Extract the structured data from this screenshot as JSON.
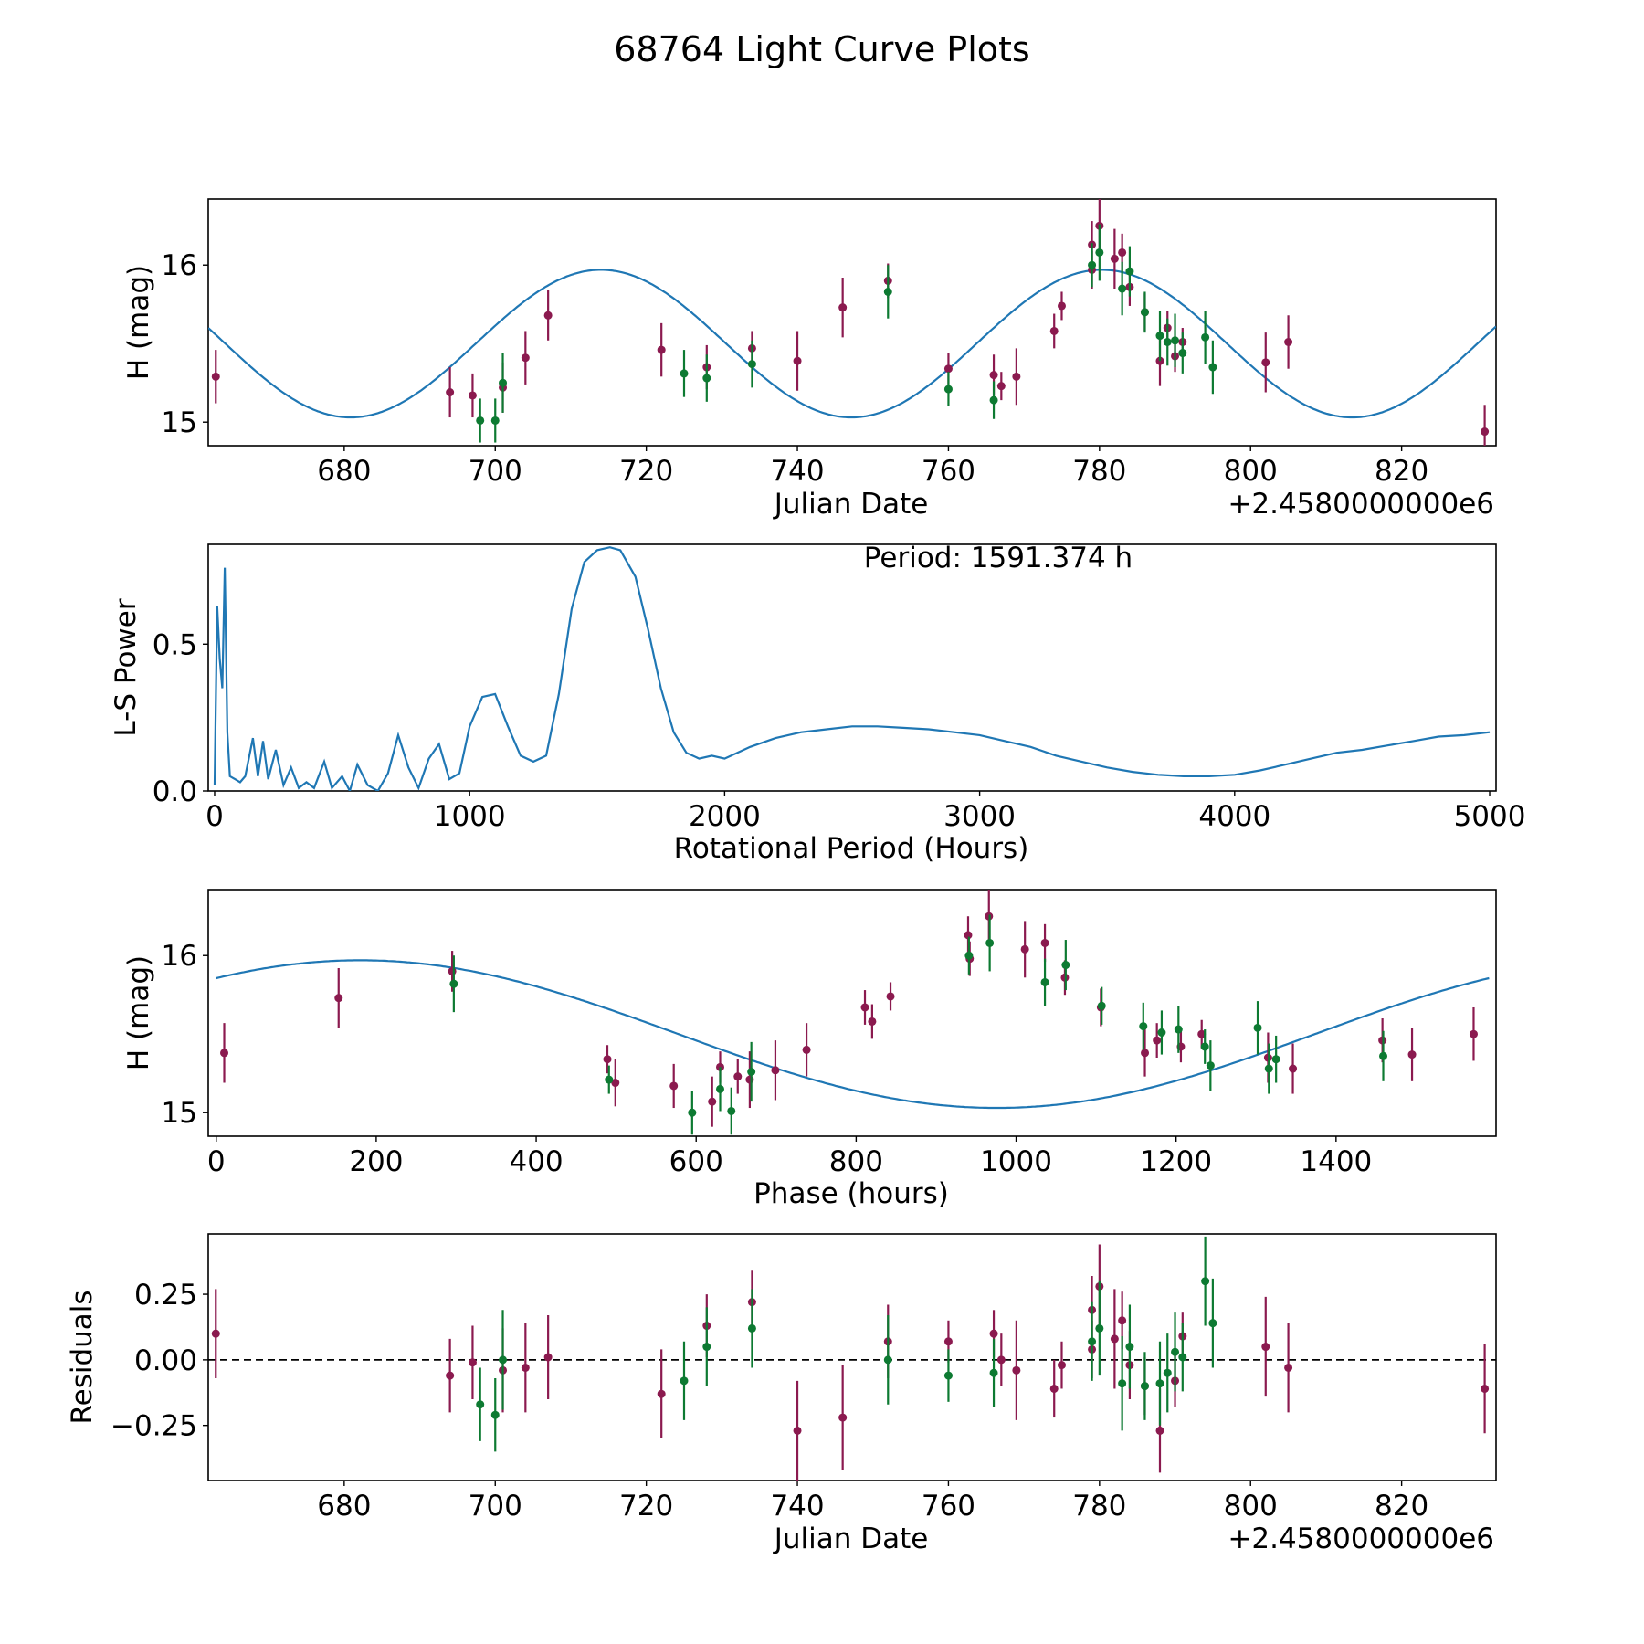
{
  "chart_data": [
    {
      "type": "scatter",
      "panel": "light-curve",
      "title": "68764 Light Curve Plots",
      "xlabel": "Julian Date",
      "ylabel": "H (mag)",
      "x_offset_label": "+2.4580000000e6",
      "xlim": [
        662,
        832.5
      ],
      "ylim": [
        14.85,
        16.42
      ],
      "xticks": [
        680,
        700,
        720,
        740,
        760,
        780,
        800,
        820
      ],
      "yticks": [
        15,
        16
      ],
      "fit": {
        "type": "sine",
        "amplitude": 0.47,
        "mean": 15.5,
        "period_days": 66.31,
        "peak_x": 780.3
      },
      "series": [
        {
          "name": "filter-1",
          "color": "#8b1a4f",
          "points": [
            [
              663,
              15.29,
              0.17
            ],
            [
              694,
              15.19,
              0.16
            ],
            [
              697,
              15.17,
              0.14
            ],
            [
              701,
              15.22,
              0.16
            ],
            [
              704,
              15.41,
              0.17
            ],
            [
              707,
              15.68,
              0.16
            ],
            [
              722,
              15.46,
              0.17
            ],
            [
              728,
              15.35,
              0.14
            ],
            [
              734,
              15.47,
              0.11
            ],
            [
              740,
              15.39,
              0.19
            ],
            [
              746,
              15.73,
              0.19
            ],
            [
              752,
              15.9,
              0.11
            ],
            [
              760,
              15.34,
              0.1
            ],
            [
              766,
              15.3,
              0.13
            ],
            [
              767,
              15.23,
              0.09
            ],
            [
              769,
              15.29,
              0.18
            ],
            [
              774,
              15.58,
              0.11
            ],
            [
              775,
              15.74,
              0.09
            ],
            [
              779,
              16.13,
              0.15
            ],
            [
              779,
              15.97,
              0.12
            ],
            [
              780,
              16.25,
              0.17
            ],
            [
              782,
              16.04,
              0.19
            ],
            [
              783,
              16.08,
              0.12
            ],
            [
              784,
              15.86,
              0.12
            ],
            [
              786,
              15.7,
              0.12
            ],
            [
              788,
              15.39,
              0.16
            ],
            [
              789,
              15.6,
              0.11
            ],
            [
              790,
              15.42,
              0.1
            ],
            [
              791,
              15.51,
              0.09
            ],
            [
              802,
              15.38,
              0.19
            ],
            [
              805,
              15.51,
              0.17
            ],
            [
              831,
              14.94,
              0.17
            ]
          ]
        },
        {
          "name": "filter-2",
          "color": "#0d7a32",
          "points": [
            [
              698,
              15.01,
              0.14
            ],
            [
              700,
              15.01,
              0.14
            ],
            [
              701,
              15.25,
              0.19
            ],
            [
              725,
              15.31,
              0.15
            ],
            [
              728,
              15.28,
              0.15
            ],
            [
              734,
              15.37,
              0.15
            ],
            [
              752,
              15.83,
              0.17
            ],
            [
              760,
              15.21,
              0.11
            ],
            [
              766,
              15.14,
              0.12
            ],
            [
              779,
              16.0,
              0.14
            ],
            [
              780,
              16.08,
              0.18
            ],
            [
              783,
              15.85,
              0.17
            ],
            [
              784,
              15.96,
              0.16
            ],
            [
              786,
              15.7,
              0.13
            ],
            [
              788,
              15.55,
              0.16
            ],
            [
              789,
              15.51,
              0.15
            ],
            [
              790,
              15.52,
              0.17
            ],
            [
              791,
              15.44,
              0.13
            ],
            [
              794,
              15.54,
              0.17
            ],
            [
              795,
              15.35,
              0.17
            ]
          ]
        }
      ]
    },
    {
      "type": "line",
      "panel": "periodogram",
      "xlabel": "Rotational Period (Hours)",
      "ylabel": "L-S Power",
      "annotation": "Period: 1591.374 h",
      "xlim": [
        -25,
        5025
      ],
      "ylim": [
        0,
        0.84
      ],
      "xticks": [
        0,
        1000,
        2000,
        3000,
        4000,
        5000
      ],
      "yticks": [
        0.0,
        0.5
      ],
      "ytick_labels": [
        "0.0",
        "0.5"
      ],
      "x": [
        0,
        10,
        20,
        30,
        40,
        50,
        60,
        80,
        100,
        120,
        150,
        170,
        190,
        210,
        240,
        270,
        300,
        330,
        360,
        390,
        430,
        460,
        500,
        530,
        560,
        600,
        640,
        680,
        720,
        760,
        800,
        840,
        880,
        920,
        960,
        1000,
        1050,
        1100,
        1150,
        1200,
        1250,
        1300,
        1350,
        1400,
        1450,
        1500,
        1550,
        1591,
        1650,
        1700,
        1750,
        1800,
        1850,
        1900,
        1950,
        2000,
        2100,
        2200,
        2300,
        2400,
        2500,
        2600,
        2700,
        2800,
        2900,
        3000,
        3100,
        3200,
        3300,
        3400,
        3500,
        3600,
        3700,
        3800,
        3900,
        4000,
        4100,
        4200,
        4300,
        4400,
        4500,
        4600,
        4700,
        4800,
        4900,
        5000
      ],
      "y": [
        0.02,
        0.63,
        0.45,
        0.35,
        0.76,
        0.2,
        0.05,
        0.04,
        0.03,
        0.05,
        0.18,
        0.05,
        0.17,
        0.04,
        0.14,
        0.02,
        0.08,
        0.01,
        0.03,
        0.01,
        0.1,
        0.01,
        0.05,
        0.0,
        0.09,
        0.02,
        0.0,
        0.06,
        0.19,
        0.08,
        0.01,
        0.11,
        0.16,
        0.04,
        0.06,
        0.22,
        0.32,
        0.33,
        0.22,
        0.12,
        0.1,
        0.12,
        0.33,
        0.62,
        0.78,
        0.82,
        0.83,
        0.82,
        0.73,
        0.55,
        0.35,
        0.2,
        0.13,
        0.11,
        0.12,
        0.11,
        0.15,
        0.18,
        0.2,
        0.21,
        0.22,
        0.22,
        0.215,
        0.21,
        0.2,
        0.19,
        0.17,
        0.15,
        0.12,
        0.1,
        0.08,
        0.065,
        0.055,
        0.05,
        0.05,
        0.055,
        0.07,
        0.09,
        0.11,
        0.13,
        0.14,
        0.155,
        0.17,
        0.185,
        0.19,
        0.2
      ]
    },
    {
      "type": "scatter",
      "panel": "phased",
      "xlabel": "Phase (hours)",
      "ylabel": "H (mag)",
      "xlim": [
        -10,
        1600
      ],
      "ylim": [
        14.85,
        16.42
      ],
      "xticks": [
        0,
        200,
        400,
        600,
        800,
        1000,
        1200,
        1400
      ],
      "yticks": [
        15,
        16
      ],
      "fit": {
        "type": "sine",
        "amplitude": 0.47,
        "mean": 15.5,
        "period_hours": 1591.374,
        "peak_x": 180
      },
      "series": [
        {
          "name": "filter-1",
          "color": "#8b1a4f",
          "points": [
            [
              10,
              15.38,
              0.19
            ],
            [
              153,
              15.73,
              0.19
            ],
            [
              295,
              15.9,
              0.13
            ],
            [
              489,
              15.34,
              0.09
            ],
            [
              499,
              15.19,
              0.15
            ],
            [
              572,
              15.17,
              0.14
            ],
            [
              620,
              15.07,
              0.16
            ],
            [
              630,
              15.29,
              0.1
            ],
            [
              652,
              15.23,
              0.11
            ],
            [
              667,
              15.21,
              0.18
            ],
            [
              699,
              15.27,
              0.19
            ],
            [
              738,
              15.4,
              0.17
            ],
            [
              811,
              15.67,
              0.11
            ],
            [
              820,
              15.58,
              0.11
            ],
            [
              843,
              15.74,
              0.09
            ],
            [
              940,
              16.13,
              0.12
            ],
            [
              942,
              15.98,
              0.11
            ],
            [
              966,
              16.25,
              0.17
            ],
            [
              1011,
              16.04,
              0.18
            ],
            [
              1036,
              16.08,
              0.12
            ],
            [
              1061,
              15.86,
              0.11
            ],
            [
              1106,
              15.67,
              0.12
            ],
            [
              1161,
              15.38,
              0.15
            ],
            [
              1176,
              15.46,
              0.11
            ],
            [
              1206,
              15.42,
              0.1
            ],
            [
              1232,
              15.5,
              0.09
            ],
            [
              1315,
              15.35,
              0.16
            ],
            [
              1346,
              15.28,
              0.16
            ],
            [
              1458,
              15.46,
              0.14
            ],
            [
              1495,
              15.37,
              0.17
            ],
            [
              1572,
              15.5,
              0.17
            ]
          ]
        },
        {
          "name": "filter-2",
          "color": "#0d7a32",
          "points": [
            [
              297,
              15.82,
              0.18
            ],
            [
              491,
              15.21,
              0.09
            ],
            [
              595,
              15.0,
              0.14
            ],
            [
              630,
              15.15,
              0.14
            ],
            [
              644,
              15.01,
              0.15
            ],
            [
              669,
              15.26,
              0.19
            ],
            [
              941,
              16.0,
              0.12
            ],
            [
              967,
              16.08,
              0.18
            ],
            [
              1036,
              15.83,
              0.15
            ],
            [
              1062,
              15.94,
              0.16
            ],
            [
              1107,
              15.68,
              0.12
            ],
            [
              1159,
              15.55,
              0.15
            ],
            [
              1182,
              15.51,
              0.14
            ],
            [
              1203,
              15.53,
              0.15
            ],
            [
              1236,
              15.42,
              0.11
            ],
            [
              1243,
              15.3,
              0.16
            ],
            [
              1302,
              15.54,
              0.17
            ],
            [
              1316,
              15.28,
              0.16
            ],
            [
              1325,
              15.34,
              0.15
            ],
            [
              1459,
              15.36,
              0.16
            ]
          ]
        }
      ]
    },
    {
      "type": "scatter",
      "panel": "residuals",
      "xlabel": "Julian Date",
      "ylabel": "Residuals",
      "x_offset_label": "+2.4580000000e6",
      "xlim": [
        662,
        832.5
      ],
      "ylim": [
        -0.46,
        0.48
      ],
      "xticks": [
        680,
        700,
        720,
        740,
        760,
        780,
        800,
        820
      ],
      "yticks": [
        -0.25,
        0.0,
        0.25
      ],
      "ytick_labels": [
        "−0.25",
        "0.00",
        "0.25"
      ],
      "reference_line": 0.0,
      "series": [
        {
          "name": "filter-1",
          "color": "#8b1a4f",
          "points": [
            [
              663,
              0.1,
              0.17
            ],
            [
              694,
              -0.06,
              0.14
            ],
            [
              697,
              -0.01,
              0.14
            ],
            [
              701,
              -0.04,
              0.16
            ],
            [
              704,
              -0.03,
              0.17
            ],
            [
              707,
              0.01,
              0.16
            ],
            [
              722,
              -0.13,
              0.17
            ],
            [
              728,
              0.13,
              0.12
            ],
            [
              734,
              0.22,
              0.12
            ],
            [
              740,
              -0.27,
              0.19
            ],
            [
              746,
              -0.22,
              0.2
            ],
            [
              752,
              0.07,
              0.14
            ],
            [
              760,
              0.07,
              0.08
            ],
            [
              766,
              0.1,
              0.09
            ],
            [
              767,
              0.0,
              0.1
            ],
            [
              769,
              -0.04,
              0.19
            ],
            [
              774,
              -0.11,
              0.11
            ],
            [
              775,
              -0.02,
              0.09
            ],
            [
              779,
              0.19,
              0.13
            ],
            [
              779,
              0.04,
              0.11
            ],
            [
              780,
              0.28,
              0.16
            ],
            [
              782,
              0.08,
              0.19
            ],
            [
              783,
              0.15,
              0.11
            ],
            [
              784,
              -0.02,
              0.13
            ],
            [
              786,
              -0.1,
              0.11
            ],
            [
              788,
              -0.27,
              0.16
            ],
            [
              790,
              -0.08,
              0.1
            ],
            [
              791,
              0.09,
              0.09
            ],
            [
              802,
              0.05,
              0.19
            ],
            [
              805,
              -0.03,
              0.17
            ],
            [
              831,
              -0.11,
              0.17
            ]
          ]
        },
        {
          "name": "filter-2",
          "color": "#0d7a32",
          "points": [
            [
              698,
              -0.17,
              0.14
            ],
            [
              700,
              -0.21,
              0.14
            ],
            [
              701,
              0.0,
              0.19
            ],
            [
              725,
              -0.08,
              0.15
            ],
            [
              728,
              0.05,
              0.15
            ],
            [
              734,
              0.12,
              0.15
            ],
            [
              752,
              0.0,
              0.17
            ],
            [
              760,
              -0.06,
              0.1
            ],
            [
              766,
              -0.05,
              0.13
            ],
            [
              779,
              0.07,
              0.15
            ],
            [
              780,
              0.12,
              0.18
            ],
            [
              783,
              -0.09,
              0.18
            ],
            [
              784,
              0.05,
              0.16
            ],
            [
              786,
              -0.1,
              0.13
            ],
            [
              788,
              -0.09,
              0.16
            ],
            [
              789,
              -0.05,
              0.15
            ],
            [
              790,
              0.03,
              0.15
            ],
            [
              791,
              0.01,
              0.13
            ],
            [
              794,
              0.3,
              0.17
            ],
            [
              795,
              0.14,
              0.17
            ]
          ]
        }
      ]
    }
  ]
}
